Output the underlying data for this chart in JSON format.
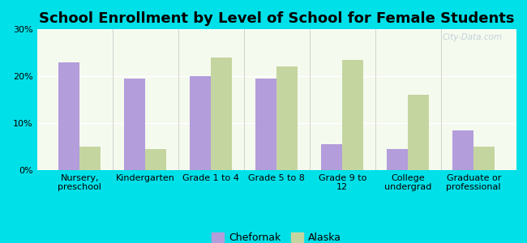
{
  "title": "School Enrollment by Level of School for Female Students",
  "categories": [
    "Nursery,\npreschool",
    "Kindergarten",
    "Grade 1 to 4",
    "Grade 5 to 8",
    "Grade 9 to\n12",
    "College\nundergrad",
    "Graduate or\nprofessional"
  ],
  "chefornak": [
    23,
    19.5,
    20,
    19.5,
    5.5,
    4.5,
    8.5
  ],
  "alaska": [
    5,
    4.5,
    24,
    22,
    23.5,
    16,
    5
  ],
  "chefornak_color": "#b39ddb",
  "alaska_color": "#c5d5a0",
  "background_outer": "#00e0e8",
  "background_plot_top": "#f5faee",
  "background_plot_bot": "#eef5e0",
  "ylim": [
    0,
    30
  ],
  "yticks": [
    0,
    10,
    20,
    30
  ],
  "legend_chefornak": "Chefornak",
  "legend_alaska": "Alaska",
  "title_fontsize": 13,
  "tick_fontsize": 8,
  "legend_fontsize": 9
}
